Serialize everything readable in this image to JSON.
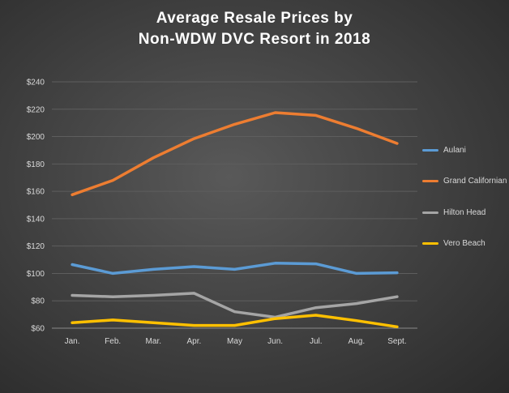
{
  "chart_data": {
    "type": "line",
    "title_lines": [
      "Average Resale Prices by",
      "Non-WDW  DVC Resort in 2018"
    ],
    "categories": [
      "Jan.",
      "Feb.",
      "Mar.",
      "Apr.",
      "May",
      "Jun.",
      "Jul.",
      "Aug.",
      "Sept."
    ],
    "yticks": [
      "$60",
      "$80",
      "$100",
      "$120",
      "$140",
      "$160",
      "$180",
      "$200",
      "$220",
      "$240"
    ],
    "ylim": [
      60,
      240
    ],
    "grid": true,
    "legend_position": "right",
    "series": [
      {
        "name": "Aulani",
        "color": "#5b9bd5",
        "values": [
          106.5,
          100,
          103,
          105,
          103,
          107.5,
          107,
          100,
          100.5
        ]
      },
      {
        "name": "Grand Californian",
        "color": "#ed7d31",
        "values": [
          157.5,
          168,
          184.5,
          198.5,
          209,
          217.5,
          215.5,
          206,
          195
        ]
      },
      {
        "name": "Hilton Head",
        "color": "#a5a5a5",
        "values": [
          84,
          83,
          84,
          85.5,
          72,
          68,
          75,
          78,
          83
        ]
      },
      {
        "name": "Vero Beach",
        "color": "#ffc000",
        "values": [
          64,
          66,
          64,
          62,
          62,
          67,
          69.5,
          65.5,
          61
        ]
      }
    ]
  }
}
